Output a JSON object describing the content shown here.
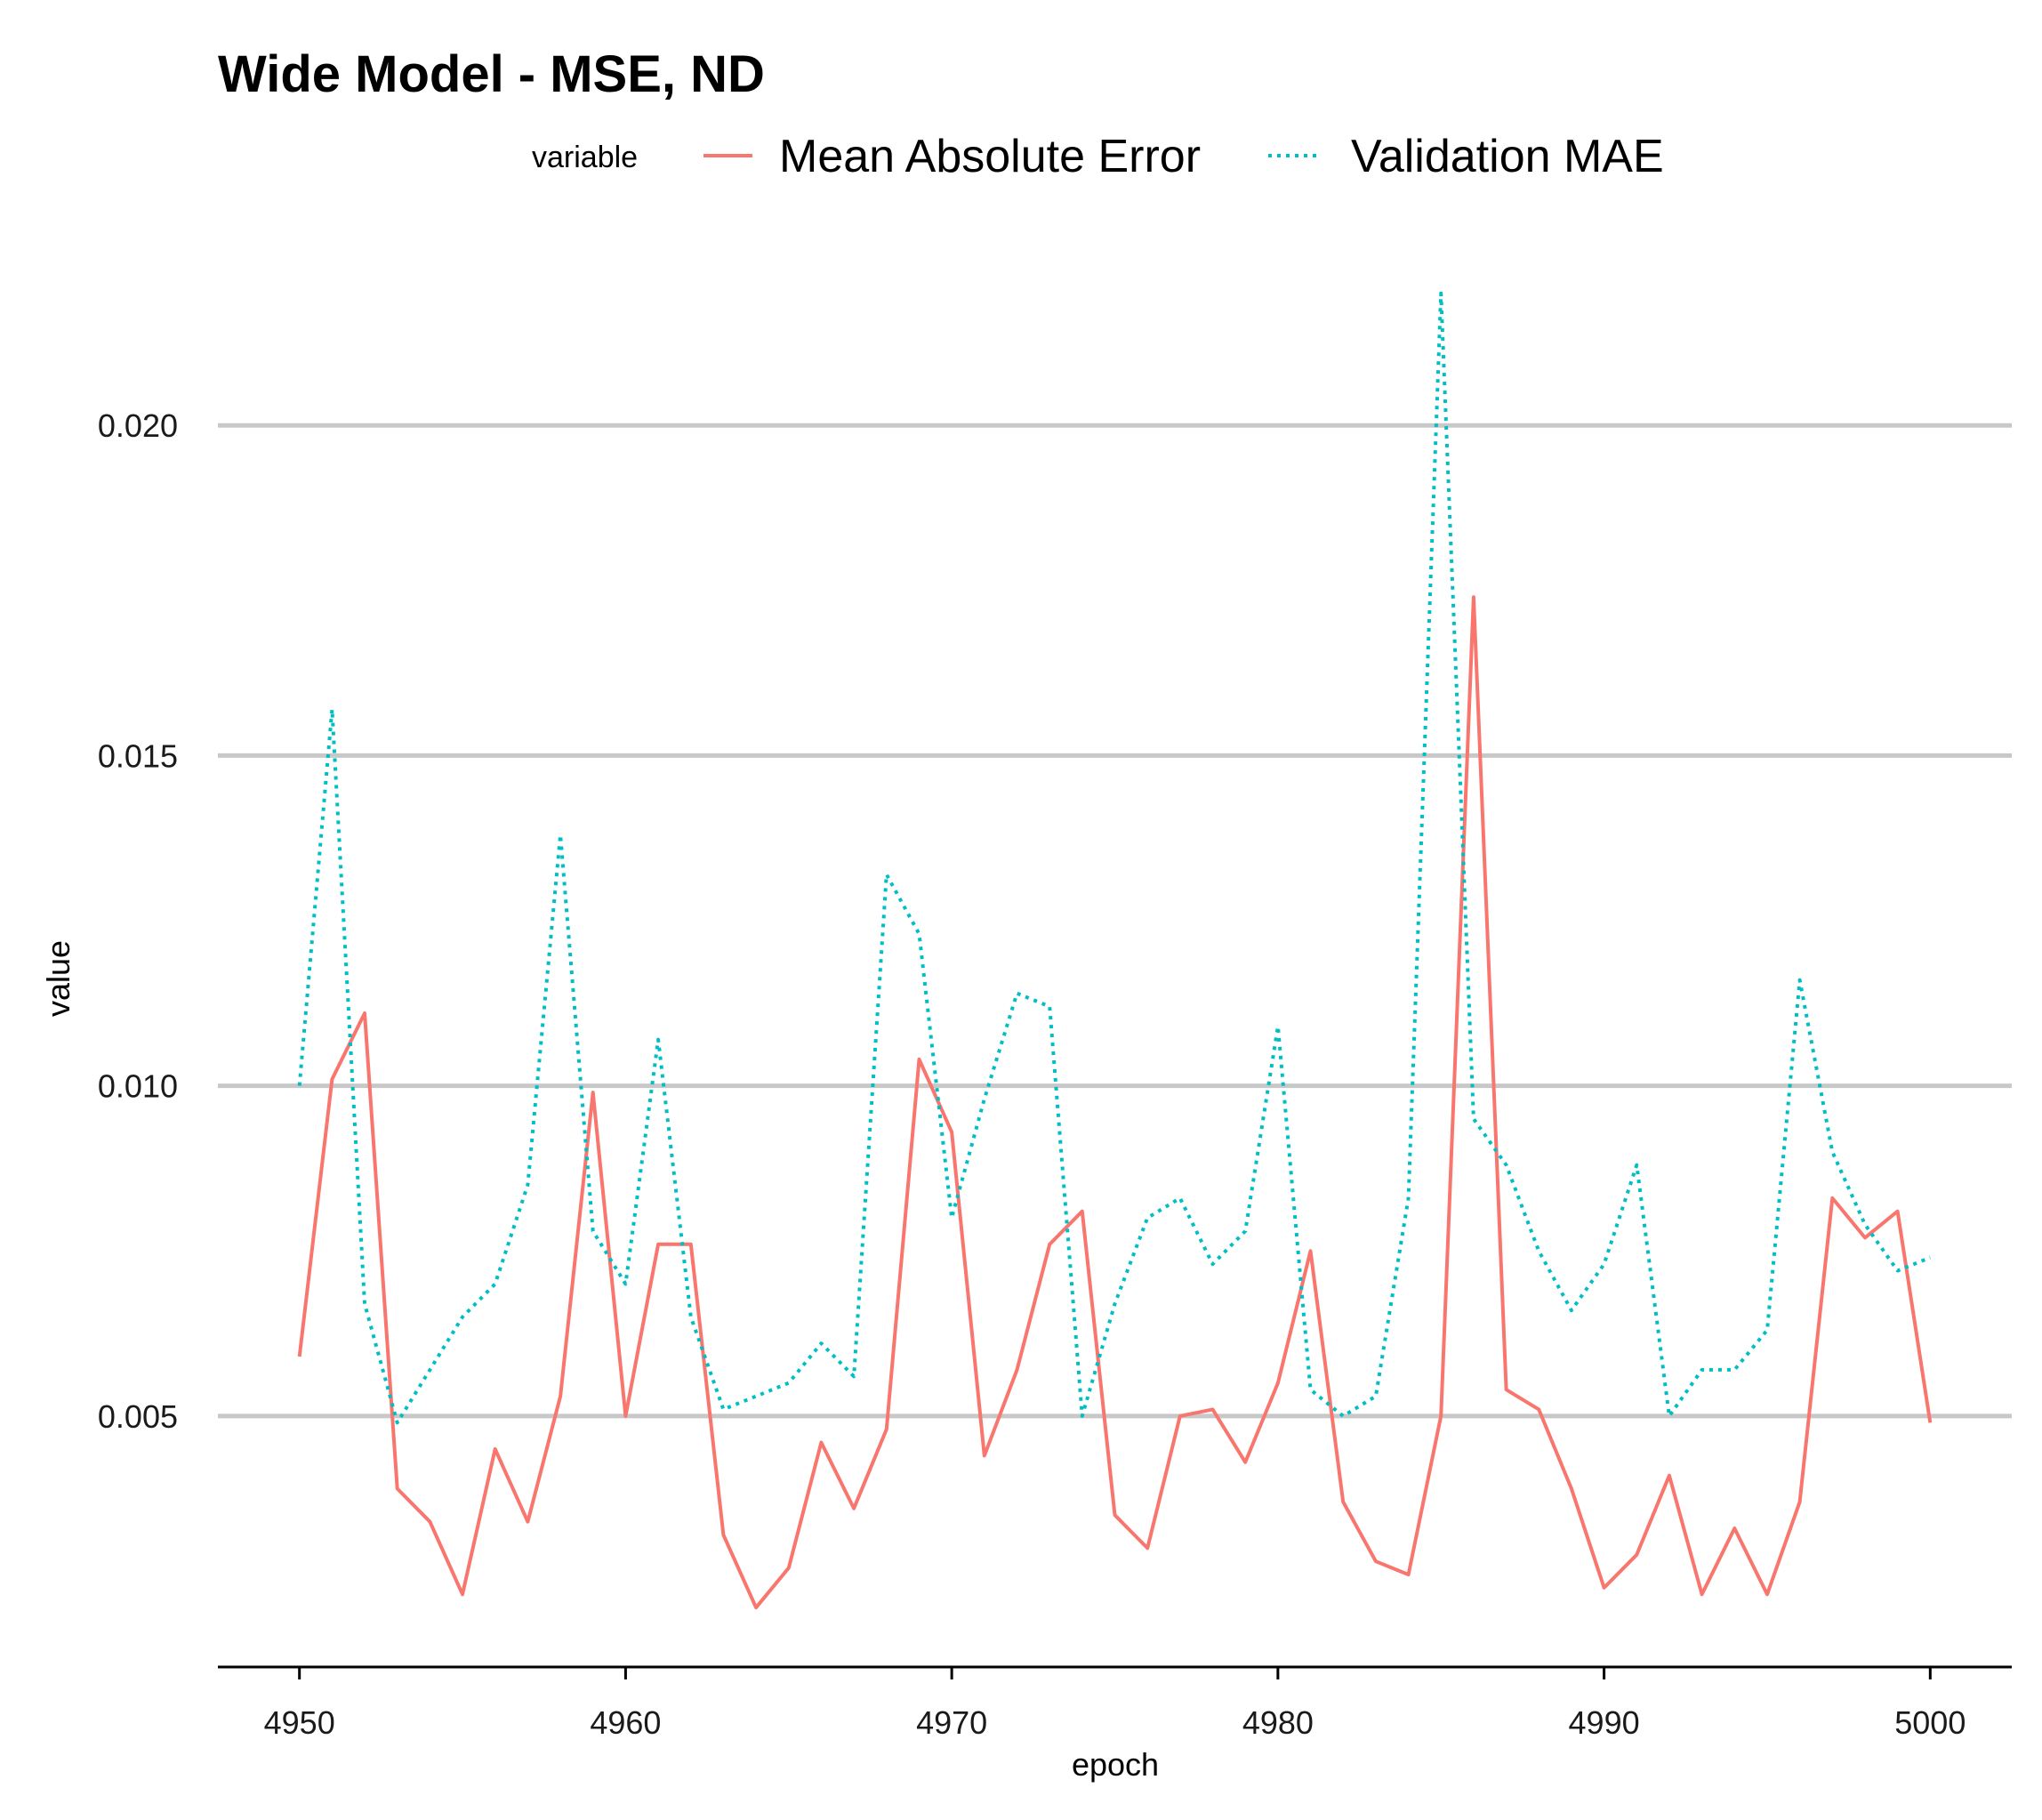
{
  "chart_data": {
    "type": "line",
    "title": "Wide Model - MSE, ND",
    "xlabel": "epoch",
    "ylabel": "value",
    "legend": {
      "title": "variable",
      "position": "top",
      "entries": [
        "Mean Absolute Error",
        "Validation MAE"
      ]
    },
    "grid": "horizontal major only",
    "xlim": [
      4947.5,
      5002.5
    ],
    "ylim": [
      0.0012,
      0.0224
    ],
    "x_ticks": [
      4950,
      4960,
      4970,
      4980,
      4990,
      5000
    ],
    "x_tick_labels": [
      "4950",
      "4960",
      "4970",
      "4980",
      "4990",
      "5000"
    ],
    "y_ticks": [
      0.005,
      0.01,
      0.015,
      0.02
    ],
    "y_tick_labels": [
      "0.005",
      "0.010",
      "0.015",
      "0.020"
    ],
    "x": [
      4950,
      4951,
      4952,
      4953,
      4954,
      4955,
      4956,
      4957,
      4958,
      4959,
      4960,
      4961,
      4962,
      4963,
      4964,
      4965,
      4966,
      4967,
      4968,
      4969,
      4970,
      4971,
      4972,
      4973,
      4974,
      4975,
      4976,
      4977,
      4978,
      4979,
      4980,
      4981,
      4982,
      4983,
      4984,
      4985,
      4986,
      4987,
      4988,
      4989,
      4990,
      4991,
      4992,
      4993,
      4994,
      4995,
      4996,
      4997,
      4998,
      4999,
      5000
    ],
    "series": [
      {
        "name": "Mean Absolute Error",
        "color": "#F8766D",
        "dash": "solid",
        "values": [
          0.0059,
          0.0101,
          0.0111,
          0.0039,
          0.0034,
          0.0023,
          0.0045,
          0.0034,
          0.0053,
          0.0099,
          0.005,
          0.0076,
          0.0076,
          0.0032,
          0.0021,
          0.0027,
          0.0046,
          0.0036,
          0.0048,
          0.0104,
          0.0093,
          0.0044,
          0.0057,
          0.0076,
          0.0081,
          0.0035,
          0.003,
          0.005,
          0.0051,
          0.0043,
          0.0055,
          0.0075,
          0.0037,
          0.0028,
          0.0026,
          0.005,
          0.0174,
          0.0054,
          0.0051,
          0.0039,
          0.0024,
          0.0029,
          0.0041,
          0.0023,
          0.0033,
          0.0023,
          0.0037,
          0.0083,
          0.0077,
          0.0081,
          0.0049
        ]
      },
      {
        "name": "Validation MAE",
        "color": "#00BFC4",
        "dash": "dotted",
        "values": [
          0.01,
          0.0157,
          0.0067,
          0.0049,
          0.0057,
          0.0065,
          0.007,
          0.0085,
          0.0138,
          0.0078,
          0.007,
          0.0107,
          0.0065,
          0.0051,
          0.0053,
          0.0055,
          0.0061,
          0.0056,
          0.0132,
          0.0123,
          0.008,
          0.0098,
          0.0114,
          0.0112,
          0.005,
          0.0067,
          0.008,
          0.0083,
          0.0073,
          0.0078,
          0.0109,
          0.0054,
          0.005,
          0.0053,
          0.0083,
          0.022,
          0.0095,
          0.0088,
          0.0075,
          0.0066,
          0.0073,
          0.0088,
          0.005,
          0.0057,
          0.0057,
          0.0063,
          0.0116,
          0.009,
          0.0079,
          0.0072,
          0.0074
        ]
      }
    ]
  }
}
